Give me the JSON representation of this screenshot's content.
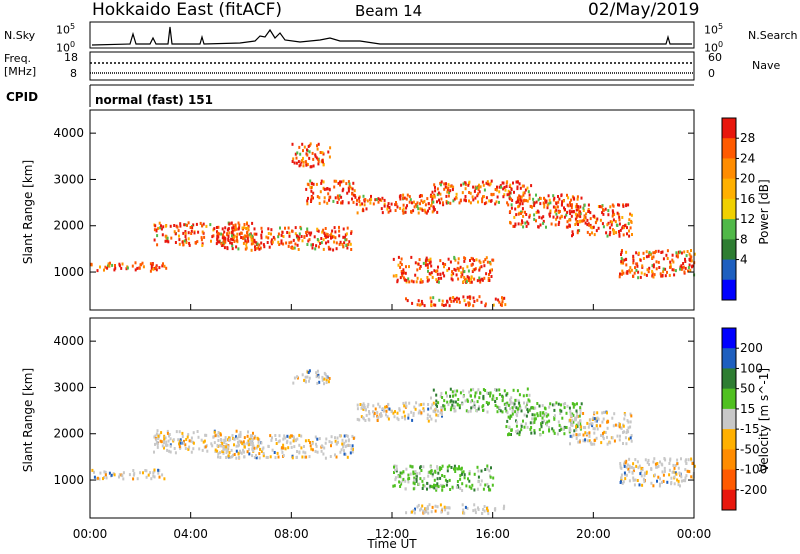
{
  "header": {
    "title": "Hokkaido East (fitACF)",
    "beam": "Beam 14",
    "date": "02/May/2019"
  },
  "left_labels": {
    "nsky": "N.Sky",
    "freq_line1": "Freq.",
    "freq_line2": "[MHz]",
    "cpid": "CPID"
  },
  "right_labels": {
    "nsearch": "N.Search",
    "nave": "Nave"
  },
  "mode_text": "normal (fast) 151",
  "strip_ticks": {
    "nsky_left": [
      "10^5",
      "10^0"
    ],
    "nsky_right": [
      "10^5",
      "10^0"
    ],
    "freq_left": [
      "18",
      "8"
    ],
    "nave_right": [
      "60",
      "0"
    ]
  },
  "chart_data": [
    {
      "type": "heatmap",
      "name": "power",
      "ylabel": "Slant Range [km]",
      "y_ticks": [
        "4000",
        "3000",
        "2000",
        "1000"
      ],
      "ylim": [
        180,
        4500
      ],
      "xlim": [
        0,
        24
      ],
      "colorbar": {
        "label": "Power [dB]",
        "ticks": [
          "28",
          "24",
          "20",
          "16",
          "12",
          "8",
          "4"
        ],
        "colors": [
          "#e8170d",
          "#ff5a00",
          "#ff8c00",
          "#ffb000",
          "#f0d000",
          "#50b848",
          "#2e7d32",
          "#1e5fbf",
          "#0000ff"
        ]
      },
      "bands": [
        {
          "t0": 0.0,
          "t1": 3.0,
          "r0": 1050,
          "r1": 1250
        },
        {
          "t0": 2.5,
          "t1": 6.5,
          "r0": 1600,
          "r1": 2100
        },
        {
          "t0": 5.0,
          "t1": 10.5,
          "r0": 1500,
          "r1": 2000
        },
        {
          "t0": 8.0,
          "t1": 9.5,
          "r0": 3300,
          "r1": 3800
        },
        {
          "t0": 8.5,
          "t1": 10.5,
          "r0": 2500,
          "r1": 3000
        },
        {
          "t0": 10.5,
          "t1": 14.0,
          "r0": 2300,
          "r1": 2700
        },
        {
          "t0": 12.0,
          "t1": 16.0,
          "r0": 800,
          "r1": 1350
        },
        {
          "t0": 12.5,
          "t1": 16.5,
          "r0": 300,
          "r1": 500
        },
        {
          "t0": 13.5,
          "t1": 17.5,
          "r0": 2500,
          "r1": 3000
        },
        {
          "t0": 16.5,
          "t1": 19.5,
          "r0": 2000,
          "r1": 2700
        },
        {
          "t0": 19.0,
          "t1": 21.5,
          "r0": 1800,
          "r1": 2500
        },
        {
          "t0": 21.0,
          "t1": 24.0,
          "r0": 900,
          "r1": 1500
        }
      ]
    },
    {
      "type": "heatmap",
      "name": "velocity",
      "ylabel": "Slant Range [km]",
      "xlabel": "Time UT",
      "y_ticks": [
        "4000",
        "3000",
        "2000",
        "1000"
      ],
      "x_ticks": [
        "00:00",
        "04:00",
        "08:00",
        "12:00",
        "16:00",
        "20:00",
        "00:00"
      ],
      "ylim": [
        180,
        4500
      ],
      "xlim": [
        0,
        24
      ],
      "colorbar": {
        "label": "Velocity [m s^-1]",
        "ticks": [
          "200",
          "100",
          "50",
          "15",
          "-15",
          "-50",
          "-100",
          "-200"
        ],
        "colors": [
          "#0000ff",
          "#1e5fbf",
          "#2e7d32",
          "#50c020",
          "#c8c8c8",
          "#ffb000",
          "#ff8c00",
          "#ff5a00",
          "#e8170d"
        ]
      },
      "bands": [
        {
          "t0": 0.0,
          "t1": 3.0,
          "r0": 1050,
          "r1": 1250
        },
        {
          "t0": 2.5,
          "t1": 6.5,
          "r0": 1600,
          "r1": 2100
        },
        {
          "t0": 5.0,
          "t1": 10.5,
          "r0": 1500,
          "r1": 2000
        },
        {
          "t0": 8.0,
          "t1": 9.5,
          "r0": 3100,
          "r1": 3400
        },
        {
          "t0": 10.5,
          "t1": 14.0,
          "r0": 2300,
          "r1": 2700
        },
        {
          "t0": 12.0,
          "t1": 16.0,
          "r0": 800,
          "r1": 1350
        },
        {
          "t0": 12.5,
          "t1": 16.5,
          "r0": 300,
          "r1": 500
        },
        {
          "t0": 13.5,
          "t1": 17.5,
          "r0": 2500,
          "r1": 3000
        },
        {
          "t0": 16.5,
          "t1": 19.5,
          "r0": 2000,
          "r1": 2700
        },
        {
          "t0": 19.0,
          "t1": 21.5,
          "r0": 1800,
          "r1": 2500
        },
        {
          "t0": 21.0,
          "t1": 24.0,
          "r0": 900,
          "r1": 1500
        }
      ]
    }
  ]
}
